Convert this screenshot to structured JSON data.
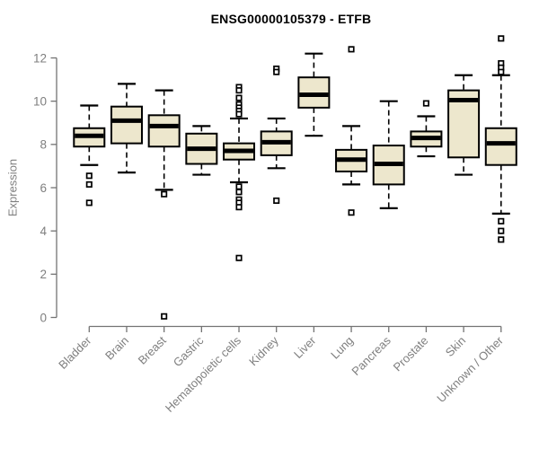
{
  "title": "ENSG00000105379 - ETFB",
  "y_axis": {
    "label": "Expression",
    "ticks": [
      0,
      2,
      4,
      6,
      8,
      10,
      12
    ],
    "range": [
      0,
      12
    ]
  },
  "colors": {
    "box_fill": "#EDE7CD",
    "box_stroke": "#000000",
    "axis_line": "#737373",
    "axis_text": "#7f7f7f",
    "title_text": "#000000",
    "outlier_fill": "#ffffff"
  },
  "chart_data": {
    "type": "boxplot",
    "title": "ENSG00000105379 - ETFB",
    "xlabel": "",
    "ylabel": "Expression",
    "ylim": [
      0,
      13
    ],
    "yticks": [
      0,
      2,
      4,
      6,
      8,
      10,
      12
    ],
    "grid": false,
    "legend": "none",
    "categories": [
      "Bladder",
      "Brain",
      "Breast",
      "Gastric",
      "Hematopoietic cells",
      "Kidney",
      "Liver",
      "Lung",
      "Pancreas",
      "Prostate",
      "Skin",
      "Unknown / Other"
    ],
    "series": [
      {
        "name": "Bladder",
        "whisker_low": 7.05,
        "q1": 7.9,
        "median": 8.4,
        "q3": 8.75,
        "whisker_high": 9.8,
        "outliers": [
          6.55,
          6.15,
          5.3
        ]
      },
      {
        "name": "Brain",
        "whisker_low": 6.7,
        "q1": 8.05,
        "median": 9.1,
        "q3": 9.75,
        "whisker_high": 10.8,
        "outliers": []
      },
      {
        "name": "Breast",
        "whisker_low": 5.9,
        "q1": 7.9,
        "median": 8.85,
        "q3": 9.35,
        "whisker_high": 10.5,
        "outliers": [
          5.7,
          0.05
        ]
      },
      {
        "name": "Gastric",
        "whisker_low": 6.6,
        "q1": 7.1,
        "median": 7.8,
        "q3": 8.5,
        "whisker_high": 8.85,
        "outliers": []
      },
      {
        "name": "Hematopoietic cells",
        "whisker_low": 6.25,
        "q1": 7.3,
        "median": 7.7,
        "q3": 8.05,
        "whisker_high": 9.2,
        "outliers": [
          10.65,
          10.5,
          10.15,
          9.85,
          9.7,
          9.55,
          9.4,
          6.05,
          5.8,
          5.45,
          5.3,
          5.1,
          2.75
        ]
      },
      {
        "name": "Kidney",
        "whisker_low": 6.9,
        "q1": 7.5,
        "median": 8.1,
        "q3": 8.6,
        "whisker_high": 9.2,
        "outliers": [
          11.5,
          11.35,
          5.4
        ]
      },
      {
        "name": "Liver",
        "whisker_low": 8.4,
        "q1": 9.7,
        "median": 10.3,
        "q3": 11.1,
        "whisker_high": 12.2,
        "outliers": []
      },
      {
        "name": "Lung",
        "whisker_low": 6.15,
        "q1": 6.75,
        "median": 7.3,
        "q3": 7.75,
        "whisker_high": 8.85,
        "outliers": [
          12.4,
          4.85
        ]
      },
      {
        "name": "Pancreas",
        "whisker_low": 5.05,
        "q1": 6.15,
        "median": 7.1,
        "q3": 7.95,
        "whisker_high": 10.0,
        "outliers": []
      },
      {
        "name": "Prostate",
        "whisker_low": 7.45,
        "q1": 7.9,
        "median": 8.3,
        "q3": 8.6,
        "whisker_high": 9.3,
        "outliers": [
          9.9
        ]
      },
      {
        "name": "Skin",
        "whisker_low": 6.6,
        "q1": 7.4,
        "median": 10.05,
        "q3": 10.5,
        "whisker_high": 11.2,
        "outliers": []
      },
      {
        "name": "Unknown / Other",
        "whisker_low": 4.8,
        "q1": 7.05,
        "median": 8.05,
        "q3": 8.75,
        "whisker_high": 11.2,
        "outliers": [
          12.9,
          11.75,
          11.55,
          11.35,
          4.45,
          4.0,
          3.6
        ]
      }
    ]
  }
}
